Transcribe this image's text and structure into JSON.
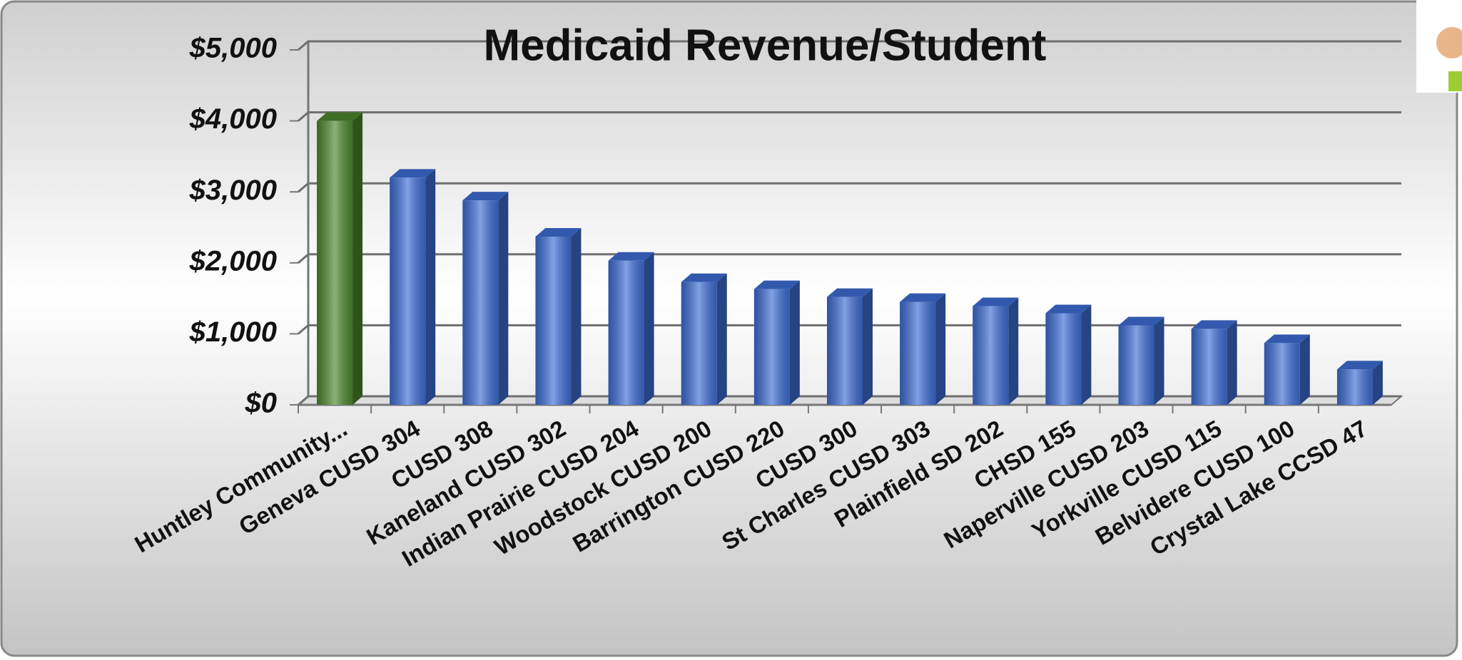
{
  "chart_data": {
    "type": "bar",
    "title": "Medicaid Revenue/Student",
    "categories": [
      "Huntley Community...",
      "Geneva CUSD 304",
      "CUSD 308",
      "Kaneland CUSD 302",
      "Indian Prairie CUSD 204",
      "Woodstock CUSD 200",
      "Barrington CUSD 220",
      "CUSD 300",
      "St Charles CUSD 303",
      "Plainfield SD 202",
      "CHSD 155",
      "Naperville CUSD 203",
      "Yorkville CUSD 115",
      "Belvidere CUSD 100",
      "Crystal Lake CCSD 47"
    ],
    "values": [
      4000,
      3200,
      2880,
      2370,
      2030,
      1730,
      1630,
      1520,
      1450,
      1390,
      1290,
      1120,
      1070,
      870,
      500
    ],
    "colors": [
      "#4f8a2e",
      "#3f6fd8",
      "#3f6fd8",
      "#3f6fd8",
      "#3f6fd8",
      "#3f6fd8",
      "#3f6fd8",
      "#3f6fd8",
      "#3f6fd8",
      "#3f6fd8",
      "#3f6fd8",
      "#3f6fd8",
      "#3f6fd8",
      "#3f6fd8",
      "#3f6fd8"
    ],
    "ylim": [
      0,
      5000
    ],
    "yticks": [
      {
        "value": 0,
        "label": "$0"
      },
      {
        "value": 1000,
        "label": "$1,000"
      },
      {
        "value": 2000,
        "label": "$2,000"
      },
      {
        "value": 3000,
        "label": "$3,000"
      },
      {
        "value": 4000,
        "label": "$4,000"
      },
      {
        "value": 5000,
        "label": "$5,000"
      }
    ],
    "grid": true
  }
}
